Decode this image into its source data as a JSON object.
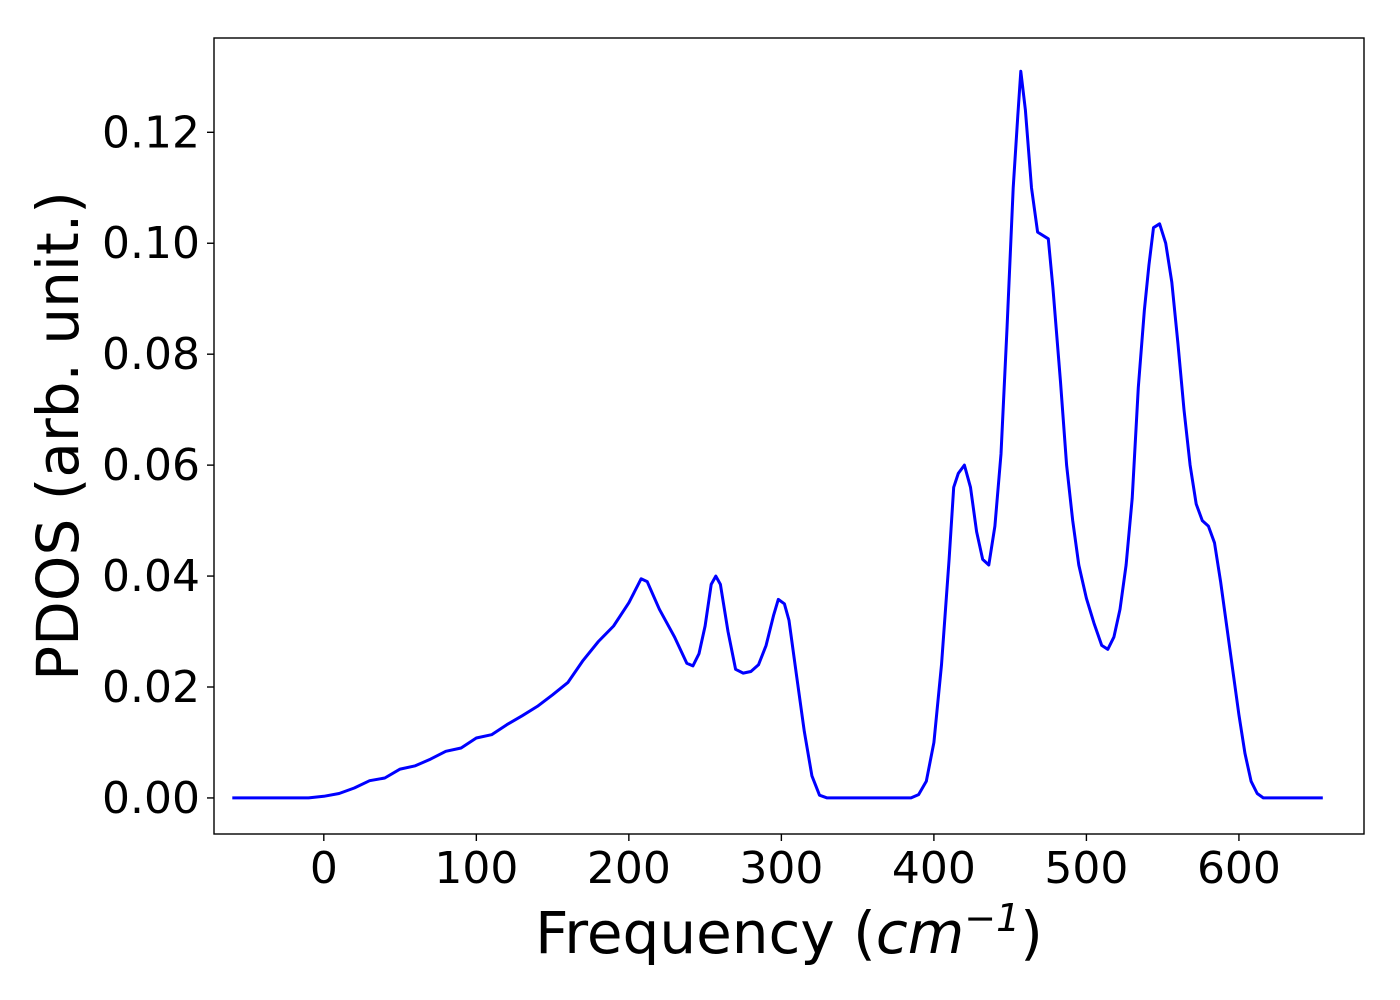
{
  "chart_data": {
    "type": "line",
    "xlabel_main": "Frequency (",
    "xlabel_unit": "cm",
    "xlabel_exp": "−1",
    "xlabel_close": ")",
    "ylabel": "PDOS (arb. unit.)",
    "xlim": [
      -72,
      682
    ],
    "ylim": [
      -0.0065,
      0.137
    ],
    "xticks": [
      0,
      100,
      200,
      300,
      400,
      500,
      600
    ],
    "yticks": [
      0.0,
      0.02,
      0.04,
      0.06,
      0.08,
      0.1,
      0.12
    ],
    "ytick_labels": [
      "0.00",
      "0.02",
      "0.04",
      "0.06",
      "0.08",
      "0.10",
      "0.12"
    ],
    "grid": false,
    "series": [
      {
        "color": "#0000ff",
        "points": [
          [
            -60,
            0.0
          ],
          [
            -10,
            0.0
          ],
          [
            0,
            0.0003
          ],
          [
            10,
            0.0008
          ],
          [
            20,
            0.0018
          ],
          [
            30,
            0.0031
          ],
          [
            40,
            0.0036
          ],
          [
            50,
            0.0052
          ],
          [
            60,
            0.0058
          ],
          [
            70,
            0.007
          ],
          [
            80,
            0.0084
          ],
          [
            90,
            0.009
          ],
          [
            100,
            0.0108
          ],
          [
            110,
            0.0114
          ],
          [
            120,
            0.0132
          ],
          [
            130,
            0.0148
          ],
          [
            140,
            0.0165
          ],
          [
            150,
            0.0186
          ],
          [
            160,
            0.0208
          ],
          [
            170,
            0.0248
          ],
          [
            180,
            0.0282
          ],
          [
            190,
            0.031
          ],
          [
            200,
            0.0352
          ],
          [
            208,
            0.0395
          ],
          [
            212,
            0.039
          ],
          [
            220,
            0.034
          ],
          [
            230,
            0.029
          ],
          [
            238,
            0.0243
          ],
          [
            242,
            0.0238
          ],
          [
            246,
            0.026
          ],
          [
            250,
            0.031
          ],
          [
            254,
            0.0385
          ],
          [
            257,
            0.04
          ],
          [
            260,
            0.0385
          ],
          [
            265,
            0.03
          ],
          [
            270,
            0.0232
          ],
          [
            275,
            0.0225
          ],
          [
            280,
            0.0228
          ],
          [
            285,
            0.024
          ],
          [
            290,
            0.0275
          ],
          [
            295,
            0.033
          ],
          [
            298,
            0.0358
          ],
          [
            302,
            0.035
          ],
          [
            305,
            0.032
          ],
          [
            310,
            0.022
          ],
          [
            315,
            0.012
          ],
          [
            320,
            0.004
          ],
          [
            325,
            0.0005
          ],
          [
            330,
            0.0
          ],
          [
            385,
            0.0
          ],
          [
            390,
            0.0006
          ],
          [
            395,
            0.003
          ],
          [
            400,
            0.01
          ],
          [
            405,
            0.024
          ],
          [
            410,
            0.043
          ],
          [
            413,
            0.056
          ],
          [
            416,
            0.0585
          ],
          [
            420,
            0.06
          ],
          [
            424,
            0.056
          ],
          [
            428,
            0.048
          ],
          [
            432,
            0.043
          ],
          [
            436,
            0.042
          ],
          [
            440,
            0.049
          ],
          [
            444,
            0.062
          ],
          [
            448,
            0.085
          ],
          [
            452,
            0.11
          ],
          [
            455,
            0.123
          ],
          [
            457,
            0.131
          ],
          [
            460,
            0.124
          ],
          [
            464,
            0.11
          ],
          [
            468,
            0.102
          ],
          [
            475,
            0.1008
          ],
          [
            478,
            0.092
          ],
          [
            483,
            0.075
          ],
          [
            487,
            0.06
          ],
          [
            491,
            0.05
          ],
          [
            495,
            0.042
          ],
          [
            500,
            0.036
          ],
          [
            505,
            0.0315
          ],
          [
            510,
            0.0275
          ],
          [
            514,
            0.0268
          ],
          [
            518,
            0.029
          ],
          [
            522,
            0.034
          ],
          [
            526,
            0.042
          ],
          [
            530,
            0.054
          ],
          [
            534,
            0.074
          ],
          [
            538,
            0.088
          ],
          [
            541,
            0.096
          ],
          [
            544,
            0.1028
          ],
          [
            548,
            0.1035
          ],
          [
            552,
            0.1
          ],
          [
            556,
            0.093
          ],
          [
            560,
            0.082
          ],
          [
            564,
            0.07
          ],
          [
            568,
            0.06
          ],
          [
            572,
            0.053
          ],
          [
            576,
            0.05
          ],
          [
            580,
            0.049
          ],
          [
            584,
            0.046
          ],
          [
            588,
            0.039
          ],
          [
            592,
            0.031
          ],
          [
            596,
            0.023
          ],
          [
            600,
            0.015
          ],
          [
            604,
            0.008
          ],
          [
            608,
            0.003
          ],
          [
            612,
            0.0008
          ],
          [
            616,
            0.0
          ],
          [
            655,
            0.0
          ]
        ]
      }
    ]
  }
}
